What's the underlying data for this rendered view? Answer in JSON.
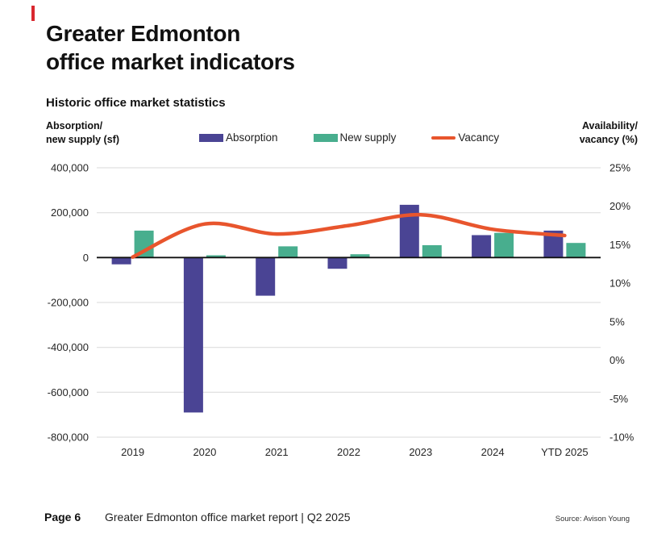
{
  "accent_color": "#D9282F",
  "header": {
    "title_line1": "Greater Edmonton",
    "title_line2": "office market indicators",
    "subtitle": "Historic office market statistics"
  },
  "chart_data": {
    "type": "combo",
    "title": "Historic office market statistics",
    "categories": [
      "2019",
      "2020",
      "2021",
      "2022",
      "2023",
      "2024",
      "YTD 2025"
    ],
    "series": [
      {
        "name": "Absorption",
        "type": "bar",
        "axis": "left",
        "color": "#4A4494",
        "values": [
          -30000,
          -690000,
          -170000,
          -50000,
          235000,
          100000,
          120000
        ]
      },
      {
        "name": "New supply",
        "type": "bar",
        "axis": "left",
        "color": "#48AE8E",
        "values": [
          120000,
          10000,
          50000,
          15000,
          55000,
          110000,
          65000
        ]
      },
      {
        "name": "Vacancy",
        "type": "line",
        "axis": "right",
        "color": "#E8552D",
        "values": [
          13.4,
          17.7,
          16.4,
          17.5,
          18.9,
          17.0,
          16.2
        ]
      }
    ],
    "left_axis": {
      "title_line1": "Absorption/",
      "title_line2": "new supply (sf)",
      "min": -800000,
      "max": 400000,
      "tick_values": [
        400000,
        200000,
        0,
        -200000,
        -400000,
        -600000,
        -800000
      ],
      "tick_labels": [
        "400,000",
        "200,000",
        "0",
        "-200,000",
        "-400,000",
        "-600,000",
        "-800,000"
      ]
    },
    "right_axis": {
      "title_line1": "Availability/",
      "title_line2": "vacancy (%)",
      "min": -10,
      "max": 25,
      "tick_values": [
        25,
        20,
        15,
        10,
        5,
        0,
        -5,
        -10
      ],
      "tick_labels": [
        "25%",
        "20%",
        "15%",
        "10%",
        "5%",
        "0%",
        "-5%",
        "-10%"
      ]
    },
    "legend": {
      "position": "top",
      "items": [
        {
          "label": "Absorption",
          "marker": "swatch",
          "color": "#4A4494"
        },
        {
          "label": "New supply",
          "marker": "swatch",
          "color": "#48AE8E"
        },
        {
          "label": "Vacancy",
          "marker": "line",
          "color": "#E8552D"
        }
      ]
    },
    "gridlines": "horizontal, left-axis intervals, zero line solid black",
    "grid_color": "#D8D8D8"
  },
  "footer": {
    "page_label": "Page 6",
    "report_title": "Greater Edmonton office market report | Q2 2025",
    "source": "Source: Avison Young"
  }
}
